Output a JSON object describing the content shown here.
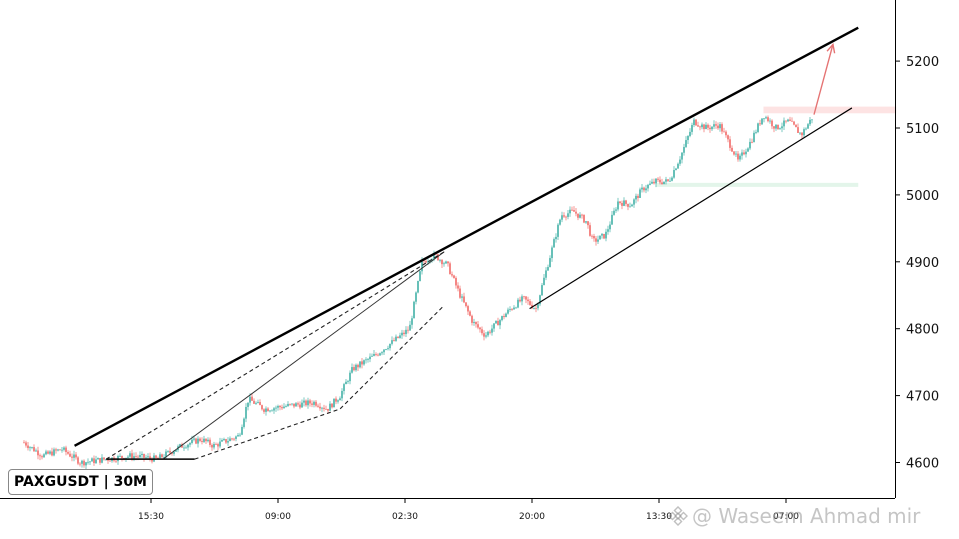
{
  "symbol_label": "PAXGUSDT | 30M",
  "watermark": {
    "handle": "@ Waseem Ahmad mir",
    "icon": "binance-logo-icon"
  },
  "colors": {
    "up": "#26a69a",
    "down": "#ef5350",
    "line": "#000000",
    "arrow": "#e57373",
    "resistance_zone": "#fde3e3",
    "support_zone": "#e3f5ea"
  },
  "chart_data": {
    "type": "candlestick",
    "x_tick_labels": [
      "15:30",
      "09:00",
      "02:30",
      "20:00",
      "13:30",
      "07:00"
    ],
    "y_ticks": [
      4600,
      4700,
      4800,
      4900,
      5000,
      5100,
      5200
    ],
    "ylim": [
      4545,
      5255
    ],
    "grid": false,
    "price_path": [
      [
        0,
        4630
      ],
      [
        0.03,
        4610
      ],
      [
        0.06,
        4620
      ],
      [
        0.09,
        4600
      ],
      [
        0.13,
        4605
      ],
      [
        0.17,
        4610
      ],
      [
        0.21,
        4605
      ],
      [
        0.25,
        4625
      ],
      [
        0.28,
        4635
      ],
      [
        0.3,
        4625
      ],
      [
        0.34,
        4640
      ],
      [
        0.355,
        4695
      ],
      [
        0.38,
        4680
      ],
      [
        0.42,
        4685
      ],
      [
        0.46,
        4690
      ],
      [
        0.48,
        4680
      ],
      [
        0.5,
        4700
      ],
      [
        0.52,
        4740
      ],
      [
        0.555,
        4760
      ],
      [
        0.59,
        4785
      ],
      [
        0.61,
        4800
      ],
      [
        0.63,
        4900
      ],
      [
        0.65,
        4910
      ],
      [
        0.67,
        4895
      ],
      [
        0.69,
        4850
      ],
      [
        0.71,
        4810
      ],
      [
        0.73,
        4790
      ],
      [
        0.75,
        4810
      ],
      [
        0.77,
        4830
      ],
      [
        0.79,
        4845
      ],
      [
        0.81,
        4830
      ],
      [
        0.83,
        4900
      ],
      [
        0.85,
        4970
      ],
      [
        0.87,
        4975
      ],
      [
        0.89,
        4960
      ],
      [
        0.9,
        4930
      ],
      [
        0.92,
        4940
      ],
      [
        0.94,
        4990
      ],
      [
        0.96,
        4985
      ],
      [
        0.98,
        5010
      ],
      [
        1.0,
        5020
      ],
      [
        1.02,
        5020
      ],
      [
        1.04,
        5060
      ],
      [
        1.06,
        5110
      ],
      [
        1.08,
        5100
      ],
      [
        1.1,
        5105
      ],
      [
        1.12,
        5070
      ],
      [
        1.13,
        5050
      ],
      [
        1.15,
        5080
      ],
      [
        1.17,
        5120
      ],
      [
        1.19,
        5100
      ],
      [
        1.21,
        5110
      ],
      [
        1.23,
        5090
      ],
      [
        1.25,
        5120
      ]
    ],
    "annotations": {
      "upper_channel_line": [
        [
          0.08,
          4625
        ],
        [
          1.32,
          5250
        ]
      ],
      "lower_channel_line": [
        [
          0.8,
          4830
        ],
        [
          1.31,
          5130
        ]
      ],
      "thin_trend_line": [
        [
          0.22,
          4605
        ],
        [
          0.665,
          4915
        ]
      ],
      "dashed_wedge": [
        [
          [
            0.13,
            4605
          ],
          [
            0.39,
            4755
          ],
          [
            0.665,
            4915
          ]
        ],
        [
          [
            0.27,
            4605
          ],
          [
            0.5,
            4680
          ],
          [
            0.665,
            4835
          ]
        ]
      ],
      "base_line": [
        [
          0.13,
          4605
        ],
        [
          0.27,
          4605
        ]
      ],
      "resistance_zone": {
        "x": [
          1.17,
          1.38
        ],
        "y": [
          5122,
          5132
        ]
      },
      "support_zone": {
        "x": [
          1.0,
          1.32
        ],
        "y": [
          5012,
          5018
        ]
      },
      "projection_arrow": [
        [
          1.25,
          5120
        ],
        [
          1.28,
          5225
        ]
      ]
    }
  }
}
